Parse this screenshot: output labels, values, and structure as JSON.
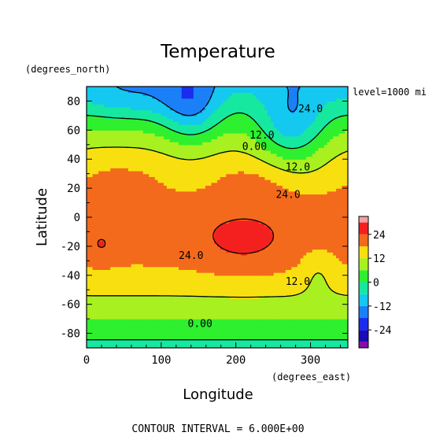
{
  "chart_data": {
    "type": "heatmap",
    "title": "Temperature",
    "xlabel": "Longitude",
    "ylabel": "Latitude",
    "x_units": "(degrees_east)",
    "y_units": "(degrees_north)",
    "level_label": "level=1000 mi",
    "footer": "CONTOUR INTERVAL = 6.000E+00",
    "xlim": [
      0,
      350
    ],
    "ylim": [
      -90,
      90
    ],
    "x_ticks": [
      "0",
      "100",
      "200",
      "300"
    ],
    "x_tick_values": [
      0,
      100,
      200,
      300
    ],
    "y_ticks": [
      "80",
      "60",
      "40",
      "20",
      "0",
      "-20",
      "-40",
      "-60",
      "-80"
    ],
    "y_tick_values": [
      80,
      60,
      40,
      20,
      0,
      -20,
      -40,
      -60,
      -80
    ],
    "colorbar": {
      "ticks": [
        "24",
        "12",
        "0",
        "-12",
        "-24"
      ],
      "tick_values": [
        24,
        12,
        0,
        -12,
        -24
      ],
      "bands": [
        {
          "from": -33,
          "to": -30,
          "color": "#8a0aa8"
        },
        {
          "from": -30,
          "to": -24,
          "color": "#1a0ab8"
        },
        {
          "from": -24,
          "to": -18,
          "color": "#1a2cf0"
        },
        {
          "from": -18,
          "to": -12,
          "color": "#1a80f8"
        },
        {
          "from": -12,
          "to": -6,
          "color": "#14c8f0"
        },
        {
          "from": -6,
          "to": 0,
          "color": "#16e8a0"
        },
        {
          "from": 0,
          "to": 6,
          "color": "#2ef02e"
        },
        {
          "from": 6,
          "to": 12,
          "color": "#a8f020"
        },
        {
          "from": 12,
          "to": 18,
          "color": "#f8e010"
        },
        {
          "from": 18,
          "to": 24,
          "color": "#f46a1c"
        },
        {
          "from": 24,
          "to": 30,
          "color": "#f42020"
        },
        {
          "from": 30,
          "to": 33,
          "color": "#f4a0a0"
        }
      ]
    },
    "contour_labels": [
      {
        "text": "24.0",
        "lon": 300,
        "lat": 75
      },
      {
        "text": "12.0",
        "lon": 235,
        "lat": 57
      },
      {
        "text": "0.00",
        "lon": 225,
        "lat": 49
      },
      {
        "text": "12.0",
        "lon": 283,
        "lat": 35
      },
      {
        "text": "24.0",
        "lon": 270,
        "lat": 16
      },
      {
        "text": "24.0",
        "lon": 140,
        "lat": -26
      },
      {
        "text": "12.0",
        "lon": 283,
        "lat": -44
      },
      {
        "text": "0.00",
        "lon": 152,
        "lat": -73
      }
    ],
    "contour_levels": [
      -24,
      -12,
      0,
      12,
      24
    ],
    "grid": false
  }
}
